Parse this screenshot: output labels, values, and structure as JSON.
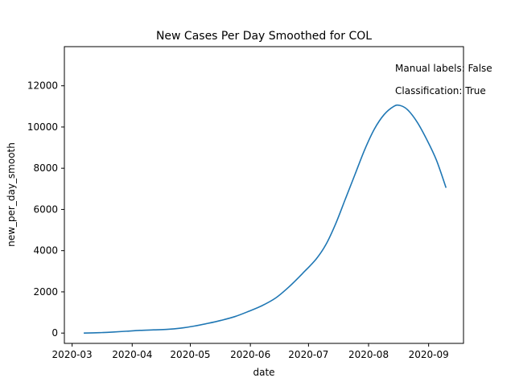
{
  "chart_data": {
    "type": "line",
    "title": "New Cases Per Day Smoothed for COL",
    "xlabel": "date",
    "ylabel": "new_per_day_smooth",
    "xlim": [
      "2020-02-26",
      "2020-09-19"
    ],
    "ylim": [
      -500,
      13900
    ],
    "grid": false,
    "line_color": "#1f77b4",
    "x_ticks": [
      "2020-03-01",
      "2020-04-01",
      "2020-05-01",
      "2020-06-01",
      "2020-07-01",
      "2020-08-01",
      "2020-09-01"
    ],
    "x_tick_labels": [
      "2020-03",
      "2020-04",
      "2020-05",
      "2020-06",
      "2020-07",
      "2020-08",
      "2020-09"
    ],
    "y_ticks": [
      0,
      2000,
      4000,
      6000,
      8000,
      10000,
      12000
    ],
    "y_tick_labels": [
      "0",
      "2000",
      "4000",
      "6000",
      "8000",
      "10000",
      "12000"
    ],
    "annotations": [
      "Manual labels: False",
      "Classification: True"
    ],
    "series": [
      {
        "values": [
          {
            "x": "2020-03-07",
            "y": 0
          },
          {
            "x": "2020-03-15",
            "y": 20
          },
          {
            "x": "2020-03-22",
            "y": 50
          },
          {
            "x": "2020-03-29",
            "y": 90
          },
          {
            "x": "2020-04-05",
            "y": 130
          },
          {
            "x": "2020-04-12",
            "y": 155
          },
          {
            "x": "2020-04-19",
            "y": 180
          },
          {
            "x": "2020-04-26",
            "y": 240
          },
          {
            "x": "2020-05-03",
            "y": 340
          },
          {
            "x": "2020-05-10",
            "y": 470
          },
          {
            "x": "2020-05-17",
            "y": 620
          },
          {
            "x": "2020-05-24",
            "y": 800
          },
          {
            "x": "2020-05-31",
            "y": 1050
          },
          {
            "x": "2020-06-07",
            "y": 1330
          },
          {
            "x": "2020-06-14",
            "y": 1700
          },
          {
            "x": "2020-06-21",
            "y": 2250
          },
          {
            "x": "2020-06-28",
            "y": 2900
          },
          {
            "x": "2020-07-05",
            "y": 3600
          },
          {
            "x": "2020-07-10",
            "y": 4300
          },
          {
            "x": "2020-07-15",
            "y": 5300
          },
          {
            "x": "2020-07-20",
            "y": 6500
          },
          {
            "x": "2020-07-25",
            "y": 7700
          },
          {
            "x": "2020-07-30",
            "y": 8900
          },
          {
            "x": "2020-08-04",
            "y": 9900
          },
          {
            "x": "2020-08-09",
            "y": 10600
          },
          {
            "x": "2020-08-14",
            "y": 11000
          },
          {
            "x": "2020-08-17",
            "y": 11050
          },
          {
            "x": "2020-08-21",
            "y": 10850
          },
          {
            "x": "2020-08-26",
            "y": 10250
          },
          {
            "x": "2020-08-31",
            "y": 9400
          },
          {
            "x": "2020-09-05",
            "y": 8400
          },
          {
            "x": "2020-09-10",
            "y": 7050
          }
        ]
      }
    ]
  }
}
